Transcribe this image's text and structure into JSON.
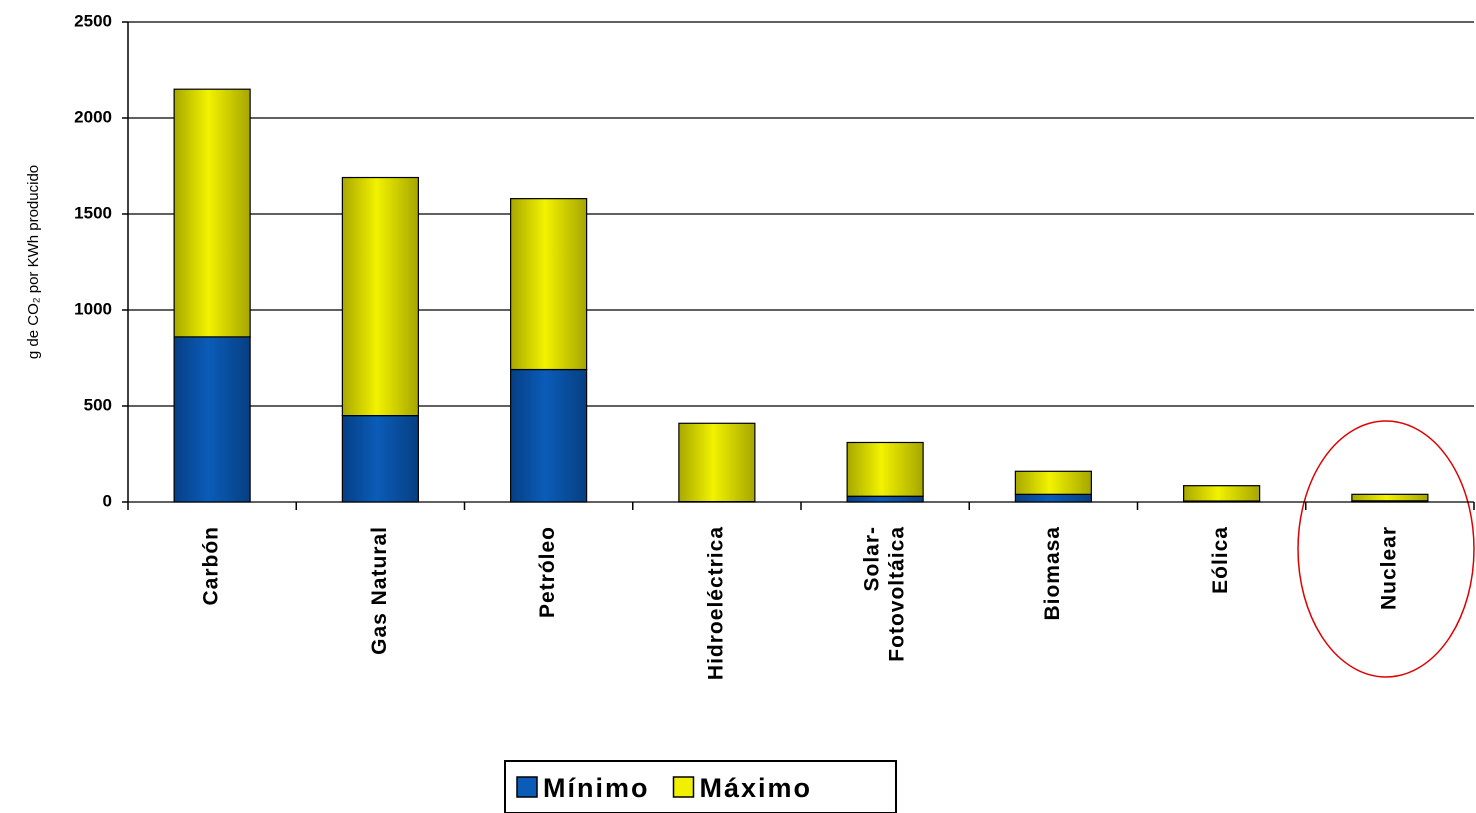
{
  "chart_data": {
    "type": "stacked_bar",
    "y_label": "g de CO₂ por KWh producido",
    "categories": [
      "Carbón",
      "Gas Natural",
      "Petróleo",
      "Hidroeléctrica",
      "Solar-\nFotovoltáica",
      "Biomasa",
      "Eólica",
      "Nuclear"
    ],
    "series": [
      {
        "name": "Mínimo",
        "color": "#0a5cb8",
        "values": [
          860,
          450,
          690,
          2,
          30,
          40,
          5,
          6
        ]
      },
      {
        "name": "Máximo",
        "color": "#f0f000",
        "values": [
          1290,
          1240,
          890,
          408,
          280,
          120,
          80,
          34
        ]
      }
    ],
    "ylim": [
      0,
      2500
    ],
    "yticks": [
      0,
      500,
      1000,
      1500,
      2000,
      2500
    ],
    "grid": true,
    "legend": "bottom"
  }
}
